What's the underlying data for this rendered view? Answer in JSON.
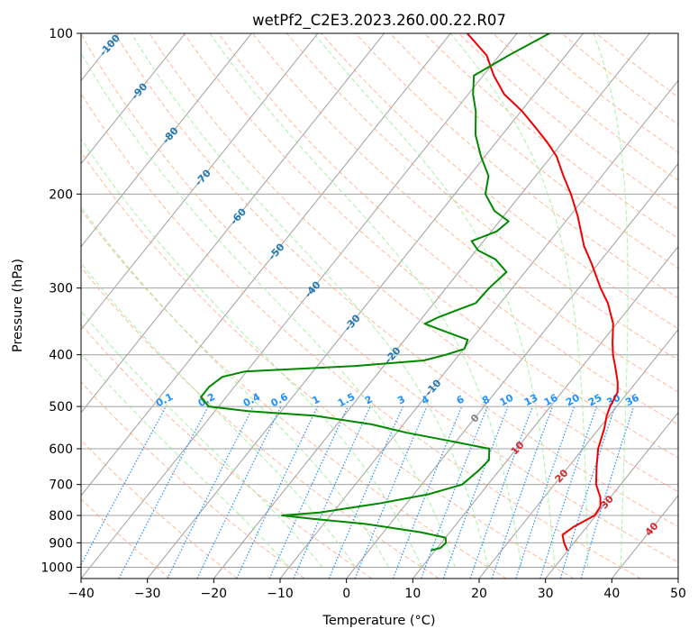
{
  "chart_data": {
    "type": "line",
    "chart_kind": "skew-T log-P sounding",
    "title": "wetPf2_C2E3.2023.260.00.22.R07",
    "xlabel": "Temperature (°C)",
    "ylabel": "Pressure (hPa)",
    "xlim": [
      -40,
      50
    ],
    "ylim": [
      1050,
      100
    ],
    "y_scale": "log",
    "grid": true,
    "x_ticks": [
      -40,
      -30,
      -20,
      -10,
      0,
      10,
      20,
      30,
      40,
      50
    ],
    "x_tick_labels": [
      "−40",
      "−30",
      "−20",
      "−10",
      "0",
      "10",
      "20",
      "30",
      "40",
      "50"
    ],
    "y_ticks": [
      100,
      200,
      300,
      400,
      500,
      600,
      700,
      800,
      900,
      1000
    ],
    "y_tick_labels": [
      "100",
      "200",
      "300",
      "400",
      "500",
      "600",
      "700",
      "800",
      "900",
      "1000"
    ],
    "series": [
      {
        "color": "#ee0000",
        "points": [
          [
            930,
            29.9
          ],
          [
            900,
            28.5
          ],
          [
            870,
            27.3
          ],
          [
            840,
            28.0
          ],
          [
            800,
            29.8
          ],
          [
            770,
            29.6
          ],
          [
            740,
            28.5
          ],
          [
            700,
            26.3
          ],
          [
            650,
            24.3
          ],
          [
            600,
            22.3
          ],
          [
            550,
            20.8
          ],
          [
            520,
            19.6
          ],
          [
            500,
            19.0
          ],
          [
            470,
            18.4
          ],
          [
            450,
            17.2
          ],
          [
            420,
            14.9
          ],
          [
            400,
            13.2
          ],
          [
            380,
            11.7
          ],
          [
            350,
            9.5
          ],
          [
            320,
            6.2
          ],
          [
            300,
            3.3
          ],
          [
            270,
            -1.0
          ],
          [
            250,
            -4.3
          ],
          [
            220,
            -8.8
          ],
          [
            200,
            -12.5
          ],
          [
            185,
            -15.8
          ],
          [
            170,
            -19.2
          ],
          [
            160,
            -22.3
          ],
          [
            150,
            -25.9
          ],
          [
            140,
            -29.8
          ],
          [
            130,
            -34.6
          ],
          [
            120,
            -38.4
          ],
          [
            110,
            -41.9
          ],
          [
            100,
            -47.5
          ]
        ]
      },
      {
        "color": "#008800",
        "points": [
          [
            930,
            9.3
          ],
          [
            920,
            10.5
          ],
          [
            900,
            10.7
          ],
          [
            880,
            10.0
          ],
          [
            860,
            5.6
          ],
          [
            830,
            -3.6
          ],
          [
            810,
            -13.0
          ],
          [
            800,
            -17.3
          ],
          [
            790,
            -12.0
          ],
          [
            760,
            -4.2
          ],
          [
            730,
            2.2
          ],
          [
            700,
            6.1
          ],
          [
            660,
            6.9
          ],
          [
            630,
            7.2
          ],
          [
            600,
            5.9
          ],
          [
            580,
            -1.0
          ],
          [
            560,
            -8.4
          ],
          [
            540,
            -14.8
          ],
          [
            520,
            -24.5
          ],
          [
            510,
            -35.0
          ],
          [
            500,
            -41.5
          ],
          [
            480,
            -43.8
          ],
          [
            460,
            -43.8
          ],
          [
            440,
            -43.0
          ],
          [
            430,
            -40.3
          ],
          [
            420,
            -24.5
          ],
          [
            410,
            -14.6
          ],
          [
            400,
            -12.0
          ],
          [
            390,
            -9.9
          ],
          [
            375,
            -10.5
          ],
          [
            360,
            -15.5
          ],
          [
            350,
            -18.9
          ],
          [
            340,
            -17.6
          ],
          [
            320,
            -13.7
          ],
          [
            300,
            -13.5
          ],
          [
            280,
            -12.8
          ],
          [
            265,
            -16.0
          ],
          [
            255,
            -19.7
          ],
          [
            245,
            -21.8
          ],
          [
            235,
            -19.2
          ],
          [
            225,
            -18.6
          ],
          [
            215,
            -22.0
          ],
          [
            200,
            -25.4
          ],
          [
            185,
            -27.1
          ],
          [
            170,
            -30.6
          ],
          [
            155,
            -34.0
          ],
          [
            140,
            -36.8
          ],
          [
            130,
            -39.3
          ],
          [
            120,
            -41.4
          ],
          [
            110,
            -38.6
          ],
          [
            100,
            -35.1
          ]
        ]
      }
    ],
    "isotherm_labels": [
      "-100",
      "-90",
      "-80",
      "-70",
      "-60",
      "-50",
      "-40",
      "-30",
      "-20",
      "-10",
      "0",
      "10",
      "20",
      "30",
      "40"
    ],
    "mixing_ratio_labels": [
      "0.1",
      "0.2",
      "0.4",
      "0.6",
      "1",
      "1.5",
      "2",
      "3",
      "4",
      "6",
      "8",
      "10",
      "13",
      "16",
      "20",
      "25",
      "30",
      "36"
    ],
    "mixing_ratio_values": [
      0.1,
      0.2,
      0.4,
      0.6,
      1,
      1.5,
      2,
      3,
      4,
      6,
      8,
      10,
      13,
      16,
      20,
      25,
      30,
      36
    ],
    "colors": {
      "temperature": "#ee0000",
      "dewpoint": "#008800",
      "isotherm_grid": "#a0a0a0",
      "dry_adiabat": "#ffa07a",
      "moist_adiabat": "#90ee90",
      "mixing_ratio": "#1e90ff",
      "label_neg": "#1f77b4",
      "label_zero": "#808080",
      "label_pos": "#d62728"
    }
  }
}
